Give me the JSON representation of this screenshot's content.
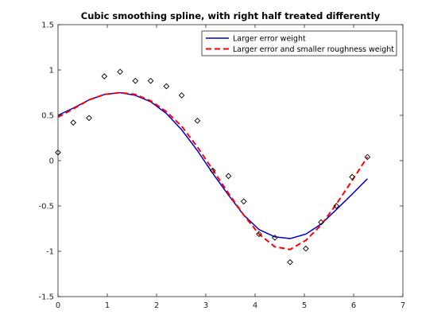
{
  "chart_data": {
    "type": "line",
    "title": "Cubic smoothing spline, with right half treated differently",
    "xlabel": "",
    "ylabel": "",
    "xlim": [
      0,
      7
    ],
    "ylim": [
      -1.5,
      1.5
    ],
    "xticks": [
      0,
      1,
      2,
      3,
      4,
      5,
      6,
      7
    ],
    "yticks": [
      -1.5,
      -1,
      -0.5,
      0,
      0.5,
      1,
      1.5
    ],
    "xtick_labels": [
      "0",
      "1",
      "2",
      "3",
      "4",
      "5",
      "6",
      "7"
    ],
    "ytick_labels": [
      "-1.5",
      "-1",
      "-0.5",
      "0",
      "0.5",
      "1",
      "1.5"
    ],
    "grid": false,
    "legend_position": "top-right",
    "points": {
      "marker": "diamond",
      "x": [
        0.0,
        0.31,
        0.63,
        0.94,
        1.26,
        1.57,
        1.88,
        2.2,
        2.51,
        2.83,
        3.14,
        3.46,
        3.77,
        4.08,
        4.4,
        4.71,
        5.03,
        5.34,
        5.65,
        5.97,
        6.28
      ],
      "y": [
        0.09,
        0.42,
        0.47,
        0.93,
        0.98,
        0.88,
        0.88,
        0.82,
        0.72,
        0.44,
        -0.11,
        -0.17,
        -0.45,
        -0.81,
        -0.85,
        -1.12,
        -0.97,
        -0.68,
        -0.5,
        -0.18,
        0.04
      ]
    },
    "series": [
      {
        "name": "Larger error weight",
        "color": "#0000cc",
        "style": "solid",
        "x": [
          0.0,
          0.31,
          0.63,
          0.94,
          1.26,
          1.57,
          1.88,
          2.2,
          2.51,
          2.83,
          3.14,
          3.46,
          3.77,
          4.08,
          4.4,
          4.71,
          5.03,
          5.34,
          5.65,
          5.97,
          6.28
        ],
        "y": [
          0.5,
          0.58,
          0.67,
          0.73,
          0.75,
          0.72,
          0.65,
          0.52,
          0.34,
          0.11,
          -0.14,
          -0.38,
          -0.6,
          -0.76,
          -0.84,
          -0.86,
          -0.81,
          -0.7,
          -0.54,
          -0.37,
          -0.2
        ]
      },
      {
        "name": "Larger error and smaller roughness weight",
        "color": "#ff0000",
        "style": "dashed",
        "x": [
          0.0,
          0.31,
          0.63,
          0.94,
          1.26,
          1.57,
          1.88,
          2.2,
          2.51,
          2.83,
          3.14,
          3.46,
          3.77,
          4.08,
          4.4,
          4.71,
          5.03,
          5.34,
          5.65,
          5.97,
          6.28
        ],
        "y": [
          0.48,
          0.57,
          0.67,
          0.73,
          0.75,
          0.73,
          0.66,
          0.54,
          0.38,
          0.15,
          -0.1,
          -0.36,
          -0.6,
          -0.81,
          -0.95,
          -0.98,
          -0.88,
          -0.71,
          -0.48,
          -0.22,
          0.04
        ]
      }
    ]
  }
}
